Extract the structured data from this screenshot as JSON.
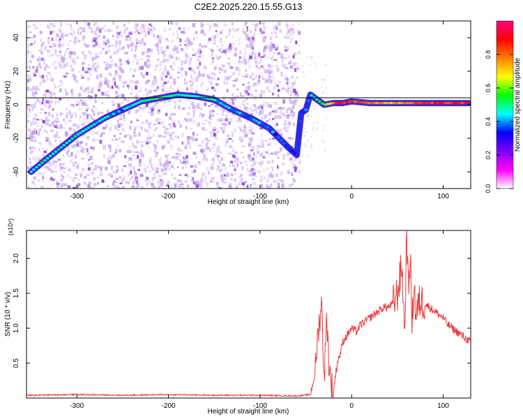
{
  "title": "C2E2.2025.220.15.55.G13",
  "colors": {
    "spectrum_low": "#c9a6f0",
    "spectrum_mid": "#6a1fd0",
    "snr_line": "#e83a3a",
    "frame": "#000000"
  },
  "chart_data": [
    {
      "type": "heatmap",
      "title": "",
      "xlabel": "Height of straight line (km)",
      "ylabel": "Frequency (Hz)",
      "xlim": [
        -355,
        130
      ],
      "ylim": [
        -50,
        50
      ],
      "xticks": [
        -300,
        -200,
        -100,
        0,
        100
      ],
      "yticks": [
        -40,
        -20,
        0,
        20,
        40
      ],
      "colorbar": {
        "label": "Normalized spectral amplitude",
        "range": [
          0.0,
          1.0
        ],
        "ticks": [
          0.0,
          0.2,
          0.4,
          0.6,
          0.8
        ],
        "tick_labels": [
          "0.0",
          "0.2",
          "0.4",
          "0.6",
          "0.8"
        ],
        "colormap": [
          "#ffffff",
          "#ff00ff",
          "#8000ff",
          "#0000ff",
          "#00ffff",
          "#00ff00",
          "#ffff00",
          "#ff8000",
          "#ff0000",
          "#ff0080"
        ]
      },
      "ridge": {
        "x": [
          -350,
          -330,
          -300,
          -270,
          -250,
          -230,
          -210,
          -190,
          -170,
          -150,
          -130,
          -110,
          -90,
          -70,
          -60,
          -55,
          -50,
          -45,
          -40,
          -35,
          -30,
          -20,
          -10,
          0,
          20,
          40,
          60,
          80,
          100,
          128
        ],
        "y": [
          -40,
          -31,
          -18,
          -8,
          -3,
          2,
          4,
          6,
          5,
          3,
          -3,
          -8,
          -14,
          -25,
          -30,
          -5,
          -3,
          6,
          4,
          2,
          0,
          1,
          1,
          2,
          1,
          1,
          1,
          1,
          1,
          1
        ],
        "amplitude": [
          0.5,
          0.45,
          0.5,
          0.45,
          0.4,
          0.5,
          0.55,
          0.45,
          0.5,
          0.45,
          0.4,
          0.4,
          0.4,
          0.35,
          0.3,
          0.35,
          0.4,
          0.45,
          0.5,
          0.55,
          0.6,
          0.8,
          0.9,
          0.85,
          0.8,
          0.75,
          0.8,
          0.85,
          0.85,
          0.85
        ]
      }
    },
    {
      "type": "line",
      "title": "",
      "xlabel": "Height of straight line (km)",
      "ylabel": "SNR (10 * v/v)",
      "y_multiplier": "(x10⁴)",
      "xlim": [
        -355,
        130
      ],
      "ylim": [
        0,
        2.4
      ],
      "xticks": [
        -300,
        -200,
        -100,
        0,
        100
      ],
      "yticks": [
        0.5,
        1.0,
        1.5,
        2.0
      ],
      "ytick_labels": [
        "0.5",
        "1.0",
        "1.5",
        "2.0"
      ],
      "series": [
        {
          "x": [
            -355,
            -300,
            -250,
            -200,
            -150,
            -100,
            -60,
            -45,
            -40,
            -37,
            -35,
            -33,
            -30,
            -27,
            -25,
            -22,
            -20,
            -18,
            -15,
            -12,
            -10,
            -5,
            0,
            5,
            10,
            15,
            20,
            25,
            30,
            35,
            40,
            45,
            50,
            55,
            58,
            60,
            62,
            64,
            66,
            68,
            70,
            75,
            80,
            85,
            90,
            95,
            100,
            105,
            110,
            115,
            120,
            125,
            130
          ],
          "y": [
            0.04,
            0.05,
            0.04,
            0.05,
            0.04,
            0.04,
            0.03,
            0.05,
            0.35,
            0.9,
            1.1,
            1.4,
            0.3,
            1.2,
            0.5,
            0.2,
            0.05,
            0.3,
            0.55,
            0.65,
            0.8,
            0.9,
            1.0,
            0.95,
            1.05,
            1.1,
            1.15,
            1.2,
            1.25,
            1.3,
            1.3,
            1.35,
            1.5,
            1.9,
            0.9,
            2.4,
            1.5,
            2.1,
            1.0,
            1.7,
            1.2,
            1.4,
            1.35,
            1.3,
            1.25,
            1.2,
            1.15,
            1.05,
            1.0,
            0.95,
            0.9,
            0.85,
            0.8
          ]
        }
      ]
    }
  ]
}
